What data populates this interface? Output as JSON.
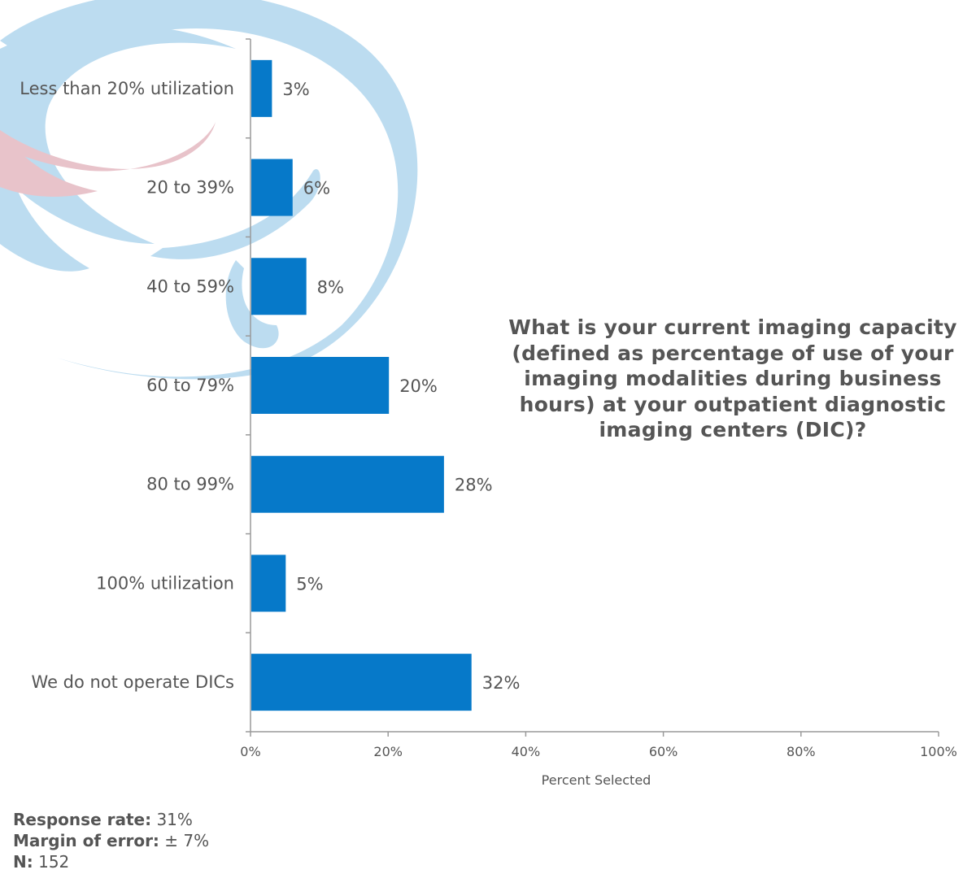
{
  "chart_data": {
    "type": "bar",
    "orientation": "horizontal",
    "title": "What is your current imaging capacity (defined as percentage of use of your imaging modalities during business hours) at your outpatient diagnostic imaging centers (DIC)?",
    "categories": [
      "Less than 20% utilization",
      "20 to 39%",
      "40 to 59%",
      "60 to 79%",
      "80 to 99%",
      "100% utilization",
      "We do not operate DICs"
    ],
    "values": [
      3,
      6,
      8,
      20,
      28,
      5,
      32
    ],
    "value_labels": [
      "3%",
      "6%",
      "8%",
      "20%",
      "28%",
      "5%",
      "32%"
    ],
    "xlabel": "Percent Selected",
    "xlim": [
      0,
      100
    ],
    "xticks": [
      "0%",
      "20%",
      "40%",
      "60%",
      "80%",
      "100%"
    ],
    "bar_color": "#0679c9",
    "grid": false
  },
  "footer": {
    "response_label": "Response rate:",
    "response_value": "31%",
    "margin_label": "Margin of error:",
    "margin_value": "± 7%",
    "n_label": "N:",
    "n_value": "152"
  },
  "colors": {
    "background_swirl": "#bcdcf0",
    "background_accent": "#e8c3ca"
  }
}
